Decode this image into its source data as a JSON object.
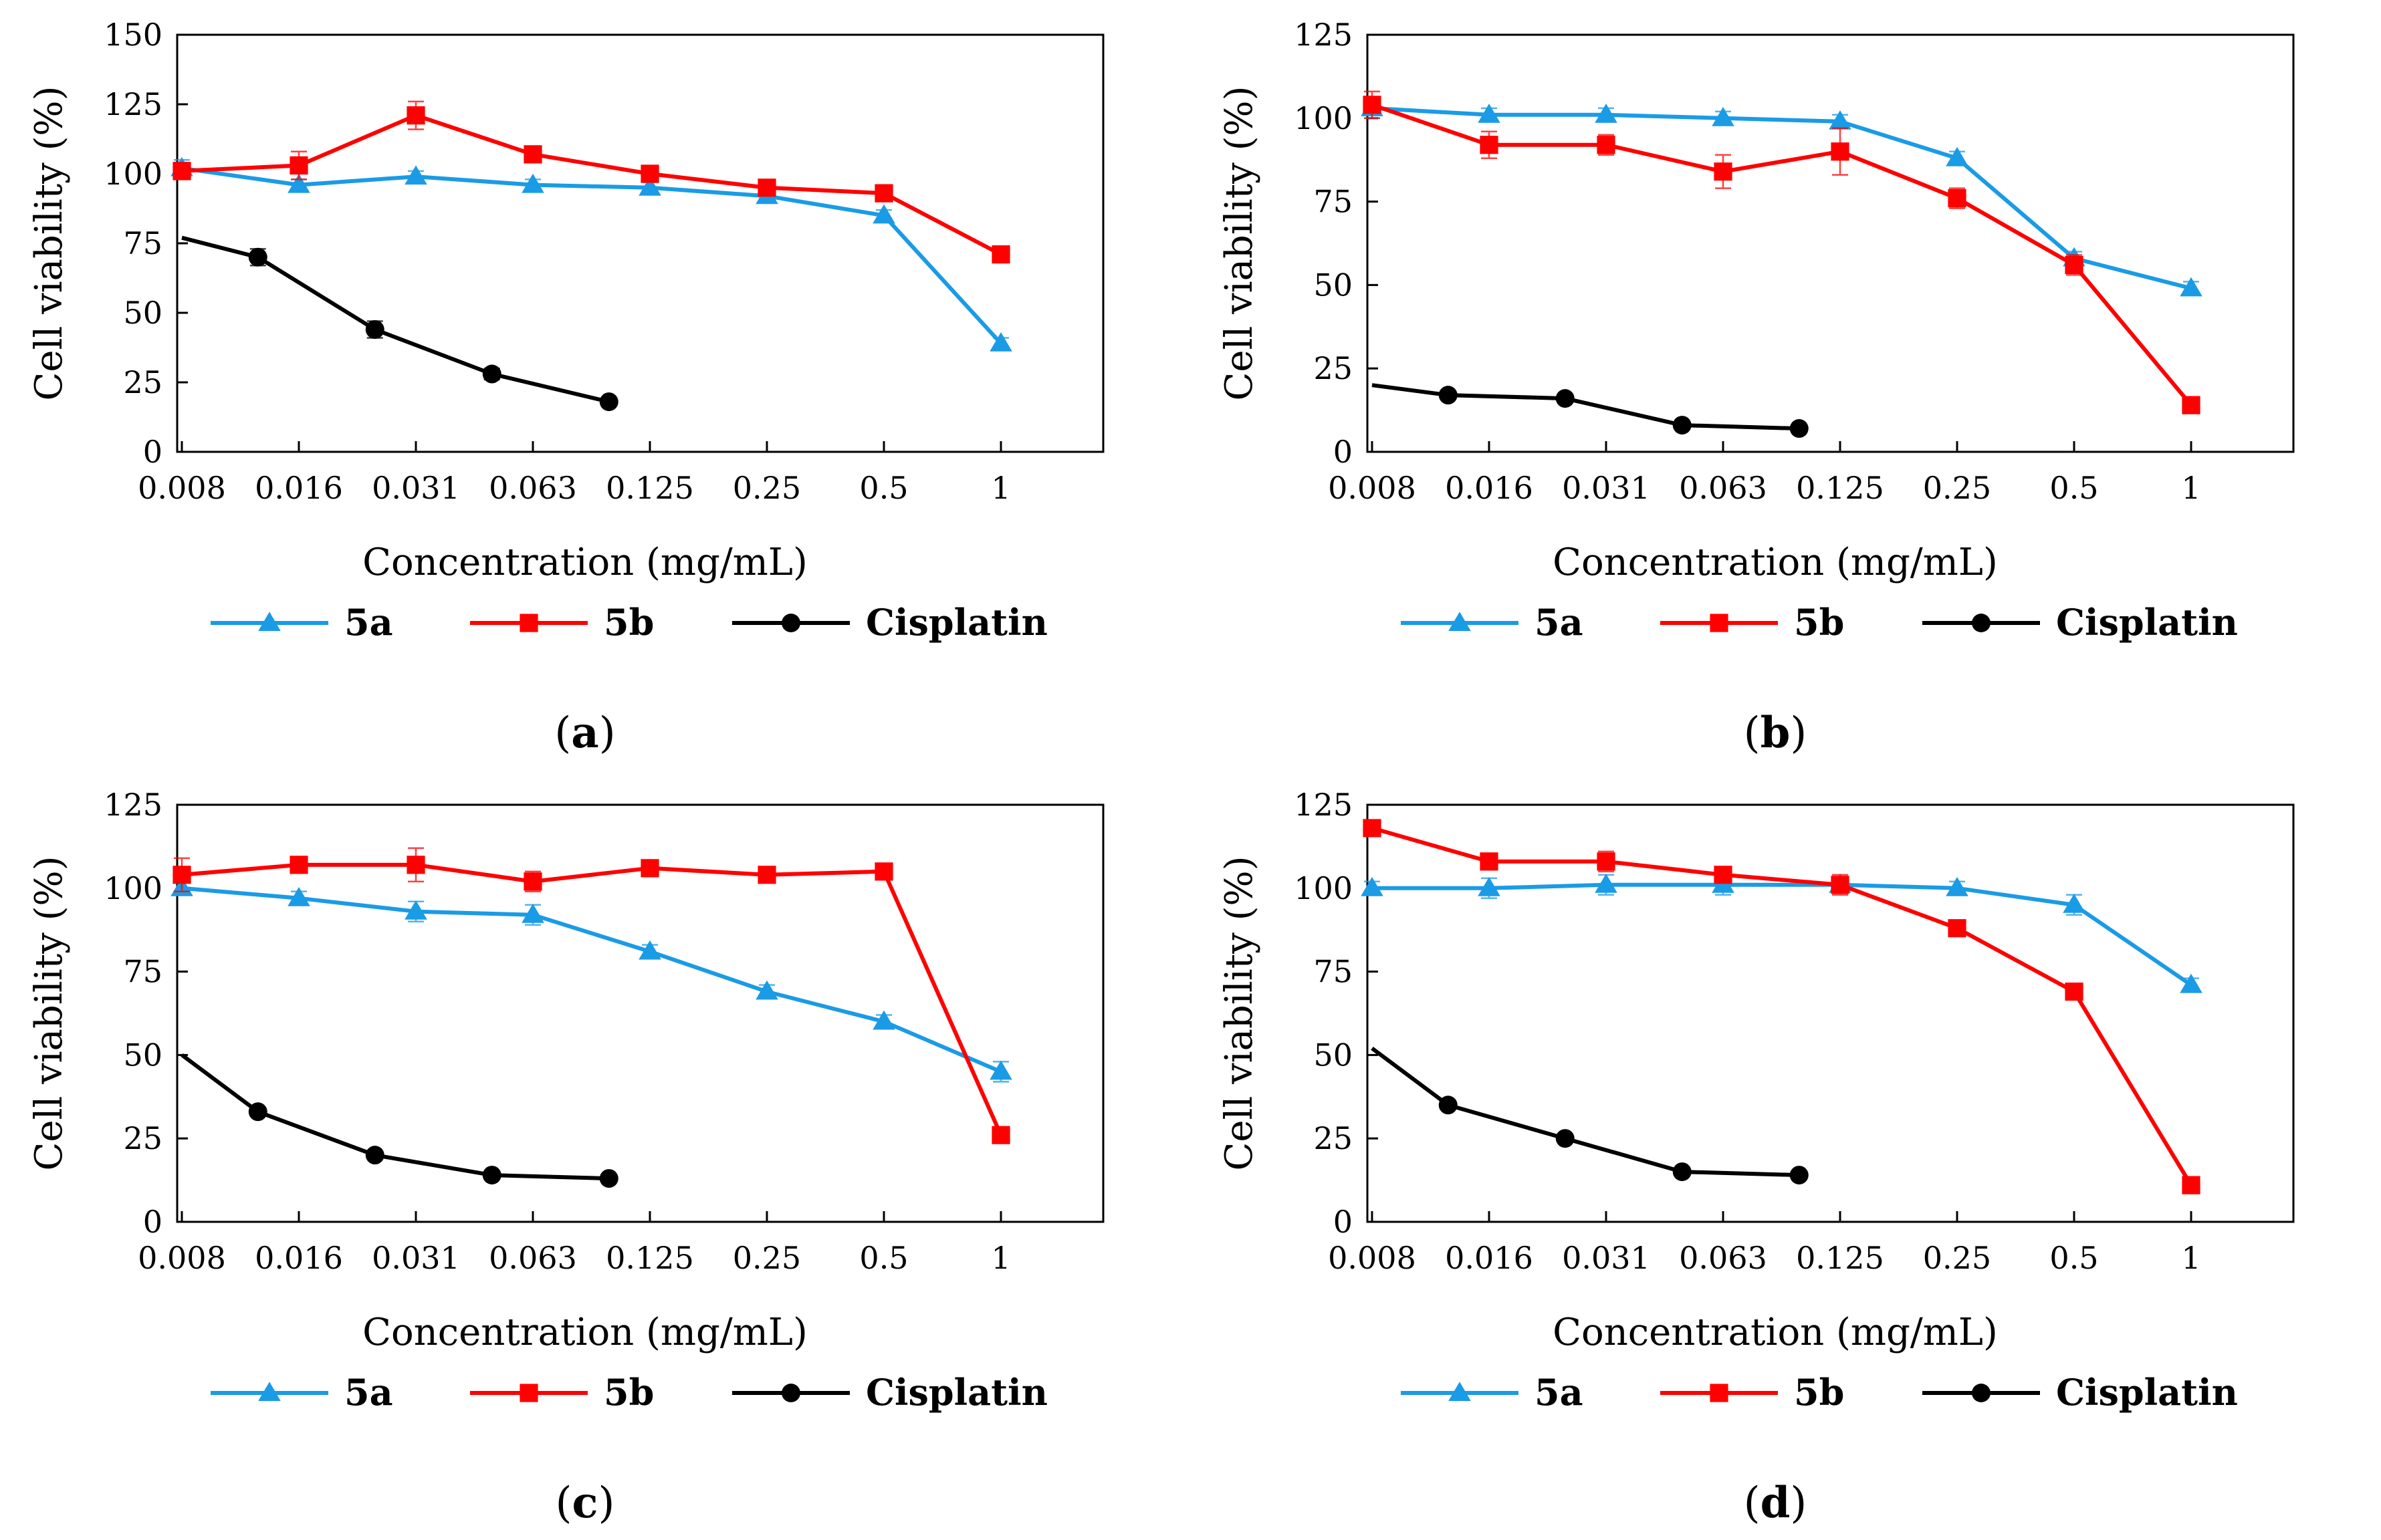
{
  "chart_data": [
    {
      "type": "line",
      "panel_label": "a",
      "xlabel": "Concentration (mg/mL)",
      "ylabel": "Cell viability (%)",
      "categories": [
        "0.008",
        "0.016",
        "0.031",
        "0.063",
        "0.125",
        "0.25",
        "0.5",
        "1"
      ],
      "ylim": [
        0,
        150
      ],
      "yticks": [
        "0",
        "25",
        "50",
        "75",
        "100",
        "125",
        "150"
      ],
      "series": [
        {
          "name": "5a",
          "color": "#1a9be6",
          "marker": "triangle",
          "x": [
            0,
            1,
            2,
            3,
            4,
            5,
            6,
            7
          ],
          "values": [
            102,
            96,
            99,
            96,
            95,
            92,
            85,
            39
          ],
          "errors": [
            3,
            2,
            2,
            2,
            2,
            2,
            2,
            2
          ]
        },
        {
          "name": "5b",
          "color": "#ff0000",
          "marker": "square",
          "x": [
            0,
            1,
            2,
            3,
            4,
            5,
            6,
            7
          ],
          "values": [
            101,
            103,
            121,
            107,
            100,
            95,
            93,
            71
          ],
          "errors": [
            3,
            5,
            5,
            2,
            2,
            2,
            2,
            2
          ]
        },
        {
          "name": "Cisplatin",
          "color": "#000000",
          "marker": "circle",
          "x": [
            0,
            0.65,
            1.65,
            2.65,
            3.65
          ],
          "values": [
            77,
            70,
            44,
            28,
            18
          ],
          "errors": [
            0,
            3,
            3,
            2,
            1
          ],
          "first_point_marker": false
        }
      ]
    },
    {
      "type": "line",
      "panel_label": "b",
      "xlabel": "Concentration (mg/mL)",
      "ylabel": "Cell viability (%)",
      "categories": [
        "0.008",
        "0.016",
        "0.031",
        "0.063",
        "0.125",
        "0.25",
        "0.5",
        "1"
      ],
      "ylim": [
        0,
        125
      ],
      "yticks": [
        "0",
        "25",
        "50",
        "75",
        "100",
        "125"
      ],
      "series": [
        {
          "name": "5a",
          "color": "#1a9be6",
          "marker": "triangle",
          "x": [
            0,
            1,
            2,
            3,
            4,
            5,
            6,
            7
          ],
          "values": [
            103,
            101,
            101,
            100,
            99,
            88,
            58,
            49
          ],
          "errors": [
            3,
            2,
            2,
            2,
            2,
            2,
            2,
            2
          ]
        },
        {
          "name": "5b",
          "color": "#ff0000",
          "marker": "square",
          "x": [
            0,
            1,
            2,
            3,
            4,
            5,
            6,
            7
          ],
          "values": [
            104,
            92,
            92,
            84,
            90,
            76,
            56,
            14
          ],
          "errors": [
            4,
            4,
            3,
            5,
            7,
            3,
            3,
            2
          ]
        },
        {
          "name": "Cisplatin",
          "color": "#000000",
          "marker": "circle",
          "x": [
            0,
            0.65,
            1.65,
            2.65,
            3.65
          ],
          "values": [
            20,
            17,
            16,
            8,
            7
          ],
          "errors": [
            0,
            1,
            1,
            1,
            1
          ],
          "first_point_marker": false
        }
      ]
    },
    {
      "type": "line",
      "panel_label": "c",
      "xlabel": "Concentration (mg/mL)",
      "ylabel": "Cell viability (%)",
      "categories": [
        "0.008",
        "0.016",
        "0.031",
        "0.063",
        "0.125",
        "0.25",
        "0.5",
        "1"
      ],
      "ylim": [
        0,
        125
      ],
      "yticks": [
        "0",
        "25",
        "50",
        "75",
        "100",
        "125"
      ],
      "series": [
        {
          "name": "5a",
          "color": "#1a9be6",
          "marker": "triangle",
          "x": [
            0,
            1,
            2,
            3,
            4,
            5,
            6,
            7
          ],
          "values": [
            100,
            97,
            93,
            92,
            81,
            69,
            60,
            45
          ],
          "errors": [
            2,
            2,
            3,
            3,
            2,
            2,
            2,
            3
          ]
        },
        {
          "name": "5b",
          "color": "#ff0000",
          "marker": "square",
          "x": [
            0,
            1,
            2,
            3,
            4,
            5,
            6,
            7
          ],
          "values": [
            104,
            107,
            107,
            102,
            106,
            104,
            105,
            26
          ],
          "errors": [
            5,
            2,
            5,
            3,
            2,
            2,
            2,
            2
          ]
        },
        {
          "name": "Cisplatin",
          "color": "#000000",
          "marker": "circle",
          "x": [
            0,
            0.65,
            1.65,
            2.65,
            3.65
          ],
          "values": [
            50,
            33,
            20,
            14,
            13
          ],
          "errors": [
            0,
            1,
            1,
            1,
            1
          ],
          "first_point_marker": false
        }
      ]
    },
    {
      "type": "line",
      "panel_label": "d",
      "xlabel": "Concentration (mg/mL)",
      "ylabel": "Cell viability (%)",
      "categories": [
        "0.008",
        "0.016",
        "0.031",
        "0.063",
        "0.125",
        "0.25",
        "0.5",
        "1"
      ],
      "ylim": [
        0,
        125
      ],
      "yticks": [
        "0",
        "25",
        "50",
        "75",
        "100",
        "125"
      ],
      "series": [
        {
          "name": "5a",
          "color": "#1a9be6",
          "marker": "triangle",
          "x": [
            0,
            1,
            2,
            3,
            4,
            5,
            6,
            7
          ],
          "values": [
            100,
            100,
            101,
            101,
            101,
            100,
            95,
            71
          ],
          "errors": [
            2,
            3,
            3,
            3,
            2,
            2,
            3,
            2
          ]
        },
        {
          "name": "5b",
          "color": "#ff0000",
          "marker": "square",
          "x": [
            0,
            1,
            2,
            3,
            4,
            5,
            6,
            7
          ],
          "values": [
            118,
            108,
            108,
            104,
            101,
            88,
            69,
            11
          ],
          "errors": [
            2,
            2,
            3,
            2,
            3,
            2,
            2,
            2
          ]
        },
        {
          "name": "Cisplatin",
          "color": "#000000",
          "marker": "circle",
          "x": [
            0,
            0.65,
            1.65,
            2.65,
            3.65
          ],
          "values": [
            52,
            35,
            25,
            15,
            14
          ],
          "errors": [
            0,
            1,
            1,
            1,
            1
          ],
          "first_point_marker": false
        }
      ]
    }
  ]
}
